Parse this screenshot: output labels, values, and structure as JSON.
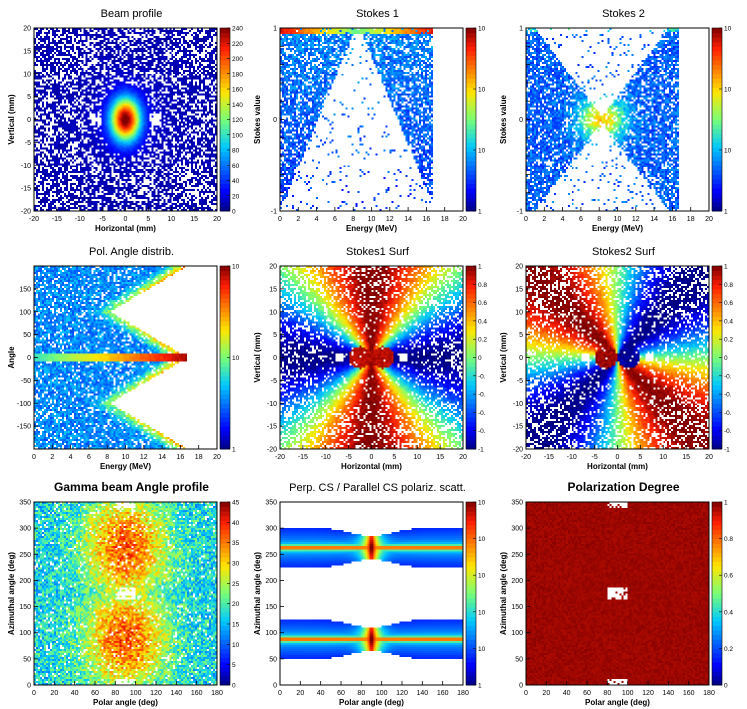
{
  "colors": {
    "background": "#ffffff",
    "frame": "#000000",
    "low": "#00007f",
    "high": "#7f0000",
    "missing": "#ffffff"
  },
  "chart_data": [
    {
      "id": "beam-profile",
      "type": "heatmap",
      "kind": "beam",
      "title": "Beam profile",
      "title_bold": false,
      "xlabel": "Horizontal (mm)",
      "ylabel": "Vertical (mm)",
      "xlim": [
        -20,
        20
      ],
      "ylim": [
        -20,
        20
      ],
      "xticks": [
        "-20",
        "-15",
        "-10",
        "-5",
        "0",
        "5",
        "10",
        "15",
        "20"
      ],
      "yticks": [
        "-20",
        "-15",
        "-10",
        "-5",
        "0",
        "5",
        "10",
        "15",
        "20"
      ],
      "zlim": [
        0,
        240
      ],
      "zticks": [
        "0",
        "20",
        "40",
        "60",
        "80",
        "100",
        "120",
        "140",
        "160",
        "180",
        "200",
        "220",
        "240"
      ]
    },
    {
      "id": "stokes-1",
      "type": "heatmap",
      "kind": "stokes1",
      "title": "Stokes 1",
      "title_bold": false,
      "xlabel": "Energy (MeV)",
      "ylabel": "Stokes value",
      "xlim": [
        0,
        20
      ],
      "ylim": [
        -1,
        1
      ],
      "xticks": [
        "0",
        "2",
        "4",
        "6",
        "8",
        "10",
        "12",
        "14",
        "16",
        "18",
        "20"
      ],
      "yticks": [
        "-1",
        "",
        "",
        "",
        "",
        "0",
        "",
        "",
        "",
        "",
        "1"
      ],
      "zlim": [
        1,
        10
      ],
      "zticks": [
        "1",
        "10",
        "10",
        "10"
      ]
    },
    {
      "id": "stokes-2",
      "type": "heatmap",
      "kind": "stokes2",
      "title": "Stokes 2",
      "title_bold": false,
      "xlabel": "Energy (MeV)",
      "ylabel": "Stokes value",
      "xlim": [
        0,
        20
      ],
      "ylim": [
        -1,
        1
      ],
      "xticks": [
        "0",
        "2",
        "4",
        "6",
        "8",
        "10",
        "12",
        "14",
        "16",
        "18",
        "20"
      ],
      "yticks": [
        "-1",
        "",
        "",
        "",
        "",
        "0",
        "",
        "",
        "",
        "",
        "1"
      ],
      "zlim": [
        1,
        10
      ],
      "zticks": [
        "1",
        "10",
        "10",
        "10"
      ]
    },
    {
      "id": "pol-angle",
      "type": "heatmap",
      "kind": "polangle",
      "title": "Pol. Angle distrib.",
      "title_bold": false,
      "xlabel": "Energy (MeV)",
      "ylabel": "Angle",
      "xlim": [
        0,
        20
      ],
      "ylim": [
        -180,
        180
      ],
      "xticks": [
        "0",
        "2",
        "4",
        "6",
        "8",
        "10",
        "12",
        "14",
        "16",
        "18",
        "20"
      ],
      "yticks": [
        "",
        "-150",
        "-100",
        "-50",
        "0",
        "50",
        "100",
        "150",
        ""
      ],
      "zlim": [
        1,
        10
      ],
      "zticks": [
        "1",
        "10",
        "10"
      ]
    },
    {
      "id": "stokes1-surf",
      "type": "heatmap",
      "kind": "s1surf",
      "title": "Stokes1 Surf",
      "title_bold": false,
      "xlabel": "Horizontal (mm)",
      "ylabel": "Vertical (mm)",
      "xlim": [
        -20,
        20
      ],
      "ylim": [
        -20,
        20
      ],
      "xticks": [
        "-20",
        "-15",
        "-10",
        "-5",
        "0",
        "5",
        "10",
        "15",
        "20"
      ],
      "yticks": [
        "-20",
        "-15",
        "-10",
        "-5",
        "0",
        "5",
        "10",
        "15",
        "20"
      ],
      "zlim": [
        -1,
        1
      ],
      "zticks": [
        "-1",
        "-0.",
        "-0.",
        "-0.",
        "-0.",
        "0",
        "0.2",
        "0.4",
        "0.6",
        "0.8",
        "1"
      ]
    },
    {
      "id": "stokes2-surf",
      "type": "heatmap",
      "kind": "s2surf",
      "title": "Stokes2 Surf",
      "title_bold": false,
      "xlabel": "Horizontal (mm)",
      "ylabel": "Vertical (mm)",
      "xlim": [
        -20,
        20
      ],
      "ylim": [
        -20,
        20
      ],
      "xticks": [
        "-20",
        "-15",
        "-10",
        "-5",
        "0",
        "5",
        "10",
        "15",
        "20"
      ],
      "yticks": [
        "-20",
        "-15",
        "-10",
        "-5",
        "0",
        "5",
        "10",
        "15",
        "20"
      ],
      "zlim": [
        -1,
        1
      ],
      "zticks": [
        "-1",
        "-0.",
        "-0.",
        "-0.",
        "-0.",
        "0",
        "0.2",
        "0.4",
        "0.6",
        "0.8",
        "1"
      ]
    },
    {
      "id": "gamma-angle",
      "type": "heatmap",
      "kind": "gamma",
      "title": "Gamma beam Angle profile",
      "title_bold": true,
      "xlabel": "Polar angle (deg)",
      "ylabel": "Azimuthal angle (deg)",
      "xlim": [
        0,
        180
      ],
      "ylim": [
        0,
        360
      ],
      "xticks": [
        "0",
        "20",
        "40",
        "60",
        "80",
        "100",
        "120",
        "140",
        "160",
        "180"
      ],
      "yticks": [
        "0",
        "50",
        "100",
        "150",
        "200",
        "250",
        "300",
        "350"
      ],
      "zlim": [
        0,
        45
      ],
      "zticks": [
        "0",
        "5",
        "10",
        "15",
        "20",
        "25",
        "30",
        "35",
        "40",
        "45"
      ]
    },
    {
      "id": "perp-parallel-cs",
      "type": "heatmap",
      "kind": "perp",
      "title": "Perp. CS / Parallel CS polariz. scatt.",
      "title_bold": false,
      "xlabel": "Polar angle (deg)",
      "ylabel": "Azimuthal angle (deg)",
      "xlim": [
        0,
        180
      ],
      "ylim": [
        0,
        360
      ],
      "xticks": [
        "0",
        "20",
        "40",
        "60",
        "80",
        "100",
        "120",
        "140",
        "160",
        "180"
      ],
      "yticks": [
        "0",
        "50",
        "100",
        "150",
        "200",
        "250",
        "300",
        "350"
      ],
      "zlim": [
        1,
        10
      ],
      "zticks": [
        "1",
        "10",
        "10",
        "10",
        "10",
        "10"
      ]
    },
    {
      "id": "polarization-degree",
      "type": "heatmap",
      "kind": "poldeg",
      "title": "Polarization Degree",
      "title_bold": true,
      "xlabel": "Polar angle (deg)",
      "ylabel": "Azimuthal angle (deg)",
      "xlim": [
        0,
        180
      ],
      "ylim": [
        0,
        360
      ],
      "xticks": [
        "0",
        "20",
        "40",
        "60",
        "80",
        "100",
        "120",
        "140",
        "160",
        "180"
      ],
      "yticks": [
        "0",
        "50",
        "100",
        "150",
        "200",
        "250",
        "300",
        "350"
      ],
      "zlim": [
        0,
        1
      ],
      "zticks": [
        "0",
        "0.2",
        "0.4",
        "0.6",
        "0.8",
        "1"
      ]
    }
  ]
}
